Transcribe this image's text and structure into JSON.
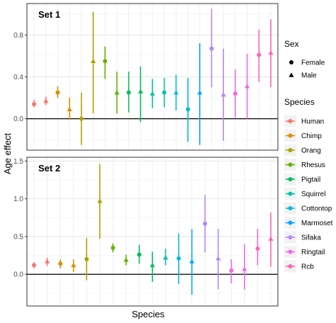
{
  "chart_data": {
    "type": "scatter",
    "xlabel": "Species",
    "ylabel": "Age effect",
    "legend_sex": {
      "title": "Sex",
      "entries": [
        {
          "label": "Female",
          "shape": "circle"
        },
        {
          "label": "Male",
          "shape": "triangle"
        }
      ]
    },
    "legend_species": {
      "title": "Species",
      "entries": [
        {
          "label": "Human",
          "color": "#F8766D"
        },
        {
          "label": "Chimp",
          "color": "#DB8E00"
        },
        {
          "label": "Orang",
          "color": "#AEA200"
        },
        {
          "label": "Rhesus",
          "color": "#64B200"
        },
        {
          "label": "Pigtail",
          "color": "#00BD5C"
        },
        {
          "label": "Squirrel",
          "color": "#00C1A7"
        },
        {
          "label": "Cottontop",
          "color": "#00BADE"
        },
        {
          "label": "Marmoset",
          "color": "#00A6FF"
        },
        {
          "label": "Sifaka",
          "color": "#B385FF"
        },
        {
          "label": "Ringtail",
          "color": "#EF67EB"
        },
        {
          "label": "Rcb",
          "color": "#FF63B6"
        }
      ]
    },
    "panels": [
      {
        "label": "Set 1",
        "ylim": [
          -0.3,
          1.1
        ],
        "yticks": [
          0,
          0.4,
          0.8
        ],
        "ytick_labels": [
          "0.0",
          "0.4",
          "0.8"
        ],
        "hline": 0,
        "points": [
          {
            "x": 1,
            "species": "Human",
            "sex": "Female",
            "y": 0.14,
            "lo": 0.11,
            "hi": 0.18
          },
          {
            "x": 2,
            "species": "Human",
            "sex": "Male",
            "y": 0.17,
            "lo": 0.13,
            "hi": 0.21
          },
          {
            "x": 3,
            "species": "Chimp",
            "sex": "Female",
            "y": 0.25,
            "lo": 0.2,
            "hi": 0.31
          },
          {
            "x": 4,
            "species": "Chimp",
            "sex": "Male",
            "y": 0.09,
            "lo": -0.01,
            "hi": 0.2
          },
          {
            "x": 5,
            "species": "Orang",
            "sex": "Female",
            "y": 0.0,
            "lo": -0.25,
            "hi": 0.25
          },
          {
            "x": 6,
            "species": "Orang",
            "sex": "Male",
            "y": 0.55,
            "lo": 0.05,
            "hi": 1.02
          },
          {
            "x": 7,
            "species": "Rhesus",
            "sex": "Female",
            "y": 0.55,
            "lo": 0.38,
            "hi": 0.69
          },
          {
            "x": 8,
            "species": "Rhesus",
            "sex": "Male",
            "y": 0.25,
            "lo": 0.05,
            "hi": 0.45
          },
          {
            "x": 9,
            "species": "Pigtail",
            "sex": "Female",
            "y": 0.25,
            "lo": 0.06,
            "hi": 0.45
          },
          {
            "x": 10,
            "species": "Pigtail",
            "sex": "Male",
            "y": 0.26,
            "lo": -0.03,
            "hi": 0.5
          },
          {
            "x": 11,
            "species": "Squirrel",
            "sex": "Male",
            "y": 0.24,
            "lo": 0.1,
            "hi": 0.38
          },
          {
            "x": 12,
            "species": "Squirrel",
            "sex": "Female",
            "y": 0.25,
            "lo": 0.11,
            "hi": 0.39
          },
          {
            "x": 13,
            "species": "Cottontop",
            "sex": "Male",
            "y": 0.25,
            "lo": 0.08,
            "hi": 0.42
          },
          {
            "x": 14,
            "species": "Cottontop",
            "sex": "Female",
            "y": 0.09,
            "lo": -0.22,
            "hi": 0.39
          },
          {
            "x": 15,
            "species": "Marmoset",
            "sex": "Male",
            "y": 0.25,
            "lo": -0.25,
            "hi": 0.72
          },
          {
            "x": 16,
            "species": "Sifaka",
            "sex": "Female",
            "y": 0.67,
            "lo": 0.3,
            "hi": 1.05
          },
          {
            "x": 17,
            "species": "Sifaka",
            "sex": "Male",
            "y": 0.23,
            "lo": -0.21,
            "hi": 0.67
          },
          {
            "x": 18,
            "species": "Ringtail",
            "sex": "Female",
            "y": 0.24,
            "lo": 0.01,
            "hi": 0.47
          },
          {
            "x": 19,
            "species": "Ringtail",
            "sex": "Male",
            "y": 0.31,
            "lo": 0.0,
            "hi": 0.62
          },
          {
            "x": 20,
            "species": "Rcb",
            "sex": "Female",
            "y": 0.61,
            "lo": 0.35,
            "hi": 0.85
          },
          {
            "x": 21,
            "species": "Rcb",
            "sex": "Male",
            "y": 0.63,
            "lo": 0.3,
            "hi": 0.95
          }
        ]
      },
      {
        "label": "Set 2",
        "ylim": [
          -0.42,
          1.55
        ],
        "yticks": [
          0,
          0.5,
          1,
          1.5
        ],
        "ytick_labels": [
          "0.0",
          "0.5",
          "1.0",
          "1.5"
        ],
        "hline": 0,
        "points": [
          {
            "x": 1,
            "species": "Human",
            "sex": "Female",
            "y": 0.12,
            "lo": 0.08,
            "hi": 0.16
          },
          {
            "x": 2,
            "species": "Human",
            "sex": "Male",
            "y": 0.17,
            "lo": 0.11,
            "hi": 0.22
          },
          {
            "x": 3,
            "species": "Chimp",
            "sex": "Female",
            "y": 0.14,
            "lo": 0.08,
            "hi": 0.2
          },
          {
            "x": 4,
            "species": "Chimp",
            "sex": "Male",
            "y": 0.12,
            "lo": 0.03,
            "hi": 0.2
          },
          {
            "x": 5,
            "species": "Orang",
            "sex": "Female",
            "y": 0.2,
            "lo": -0.08,
            "hi": 0.48
          },
          {
            "x": 6,
            "species": "Orang",
            "sex": "Male",
            "y": 0.97,
            "lo": 0.47,
            "hi": 1.46
          },
          {
            "x": 7,
            "species": "Rhesus",
            "sex": "Female",
            "y": 0.35,
            "lo": 0.29,
            "hi": 0.41
          },
          {
            "x": 8,
            "species": "Rhesus",
            "sex": "Male",
            "y": 0.19,
            "lo": 0.12,
            "hi": 0.26
          },
          {
            "x": 9,
            "species": "Pigtail",
            "sex": "Female",
            "y": 0.26,
            "lo": 0.14,
            "hi": 0.39
          },
          {
            "x": 10,
            "species": "Pigtail",
            "sex": "Male",
            "y": 0.12,
            "lo": -0.1,
            "hi": 0.3
          },
          {
            "x": 11,
            "species": "Squirrel",
            "sex": "Male",
            "y": 0.22,
            "lo": 0.12,
            "hi": 0.34
          },
          {
            "x": 12,
            "species": "Cottontop",
            "sex": "Female",
            "y": 0.21,
            "lo": -0.13,
            "hi": 0.54
          },
          {
            "x": 13,
            "species": "Marmoset",
            "sex": "Male",
            "y": 0.17,
            "lo": -0.27,
            "hi": 0.6
          },
          {
            "x": 14,
            "species": "Sifaka",
            "sex": "Female",
            "y": 0.67,
            "lo": 0.29,
            "hi": 1.05
          },
          {
            "x": 15,
            "species": "Sifaka",
            "sex": "Male",
            "y": 0.21,
            "lo": -0.2,
            "hi": 0.6
          },
          {
            "x": 16,
            "species": "Ringtail",
            "sex": "Female",
            "y": 0.05,
            "lo": -0.12,
            "hi": 0.2
          },
          {
            "x": 17,
            "species": "Ringtail",
            "sex": "Male",
            "y": 0.07,
            "lo": -0.2,
            "hi": 0.4
          },
          {
            "x": 18,
            "species": "Rcb",
            "sex": "Female",
            "y": 0.34,
            "lo": 0.12,
            "hi": 0.6
          },
          {
            "x": 19,
            "species": "Rcb",
            "sex": "Male",
            "y": 0.47,
            "lo": 0.1,
            "hi": 0.82
          }
        ]
      }
    ]
  }
}
